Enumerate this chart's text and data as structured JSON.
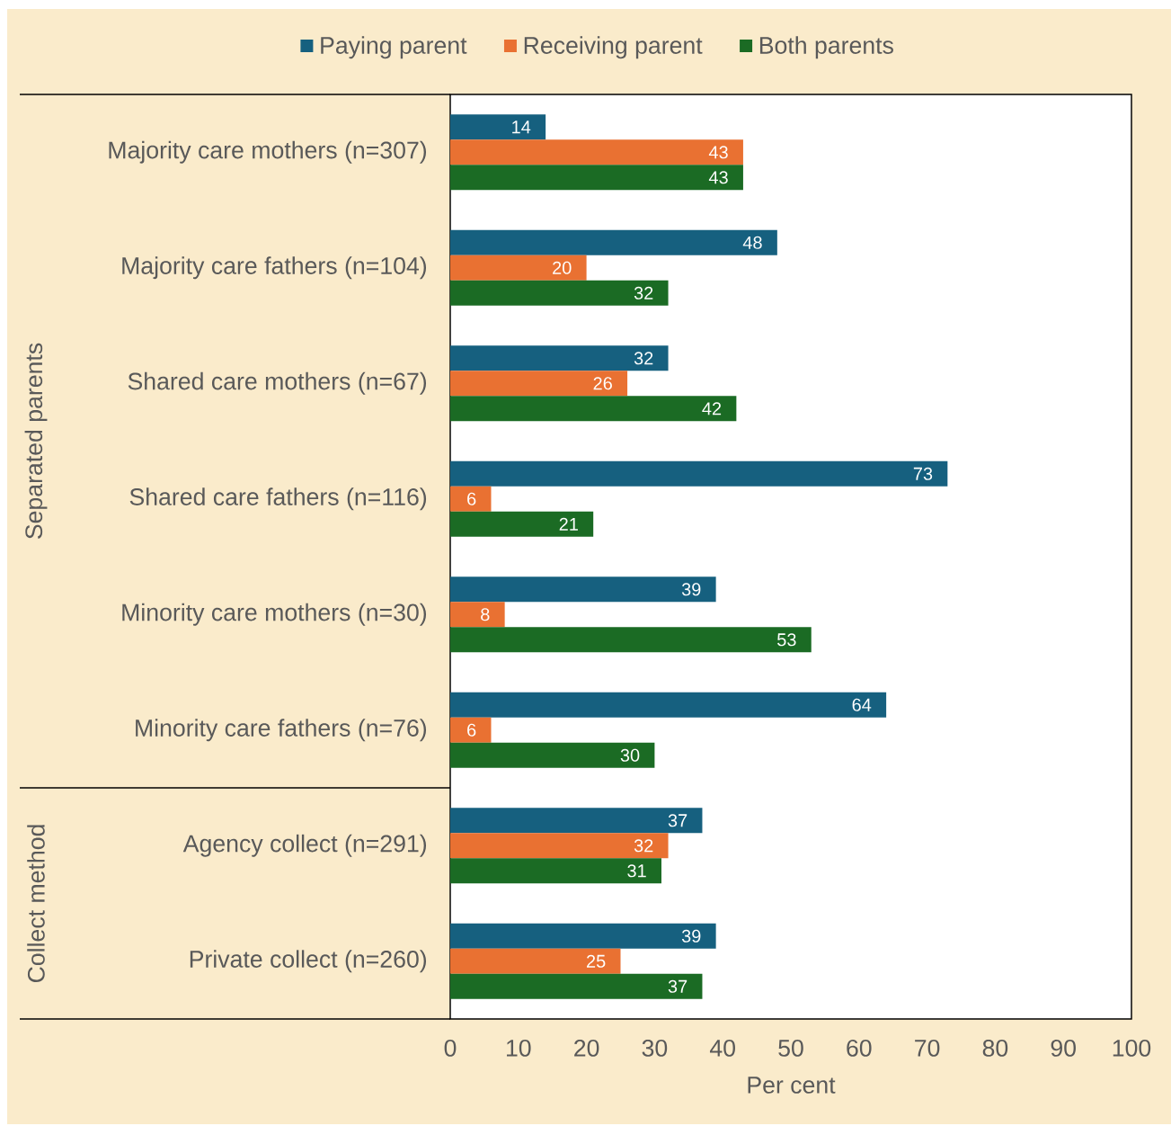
{
  "chart_data": {
    "type": "bar",
    "orientation": "horizontal",
    "categories": [
      "Majority care mothers (n=307)",
      "Majority care fathers (n=104)",
      "Shared care mothers (n=67)",
      "Shared care fathers (n=116)",
      "Minority care mothers (n=30)",
      "Minority care fathers (n=76)",
      "Agency collect (n=291)",
      "Private collect (n=260)"
    ],
    "series": [
      {
        "name": "Paying parent",
        "color": "#16607f",
        "values": [
          14,
          48,
          32,
          73,
          39,
          64,
          37,
          39
        ]
      },
      {
        "name": "Receiving parent",
        "color": "#e97132",
        "values": [
          43,
          20,
          26,
          6,
          8,
          6,
          32,
          25
        ]
      },
      {
        "name": "Both parents",
        "color": "#1b6b24",
        "values": [
          43,
          32,
          42,
          21,
          53,
          30,
          31,
          37
        ]
      }
    ],
    "xlabel": "Per cent",
    "xlim": [
      0,
      100
    ],
    "xticks": [
      0,
      10,
      20,
      30,
      40,
      50,
      60,
      70,
      80,
      90,
      100
    ],
    "legend": "top",
    "data_labels": true,
    "annotations": [
      "Separated parents",
      "Collect method"
    ]
  }
}
